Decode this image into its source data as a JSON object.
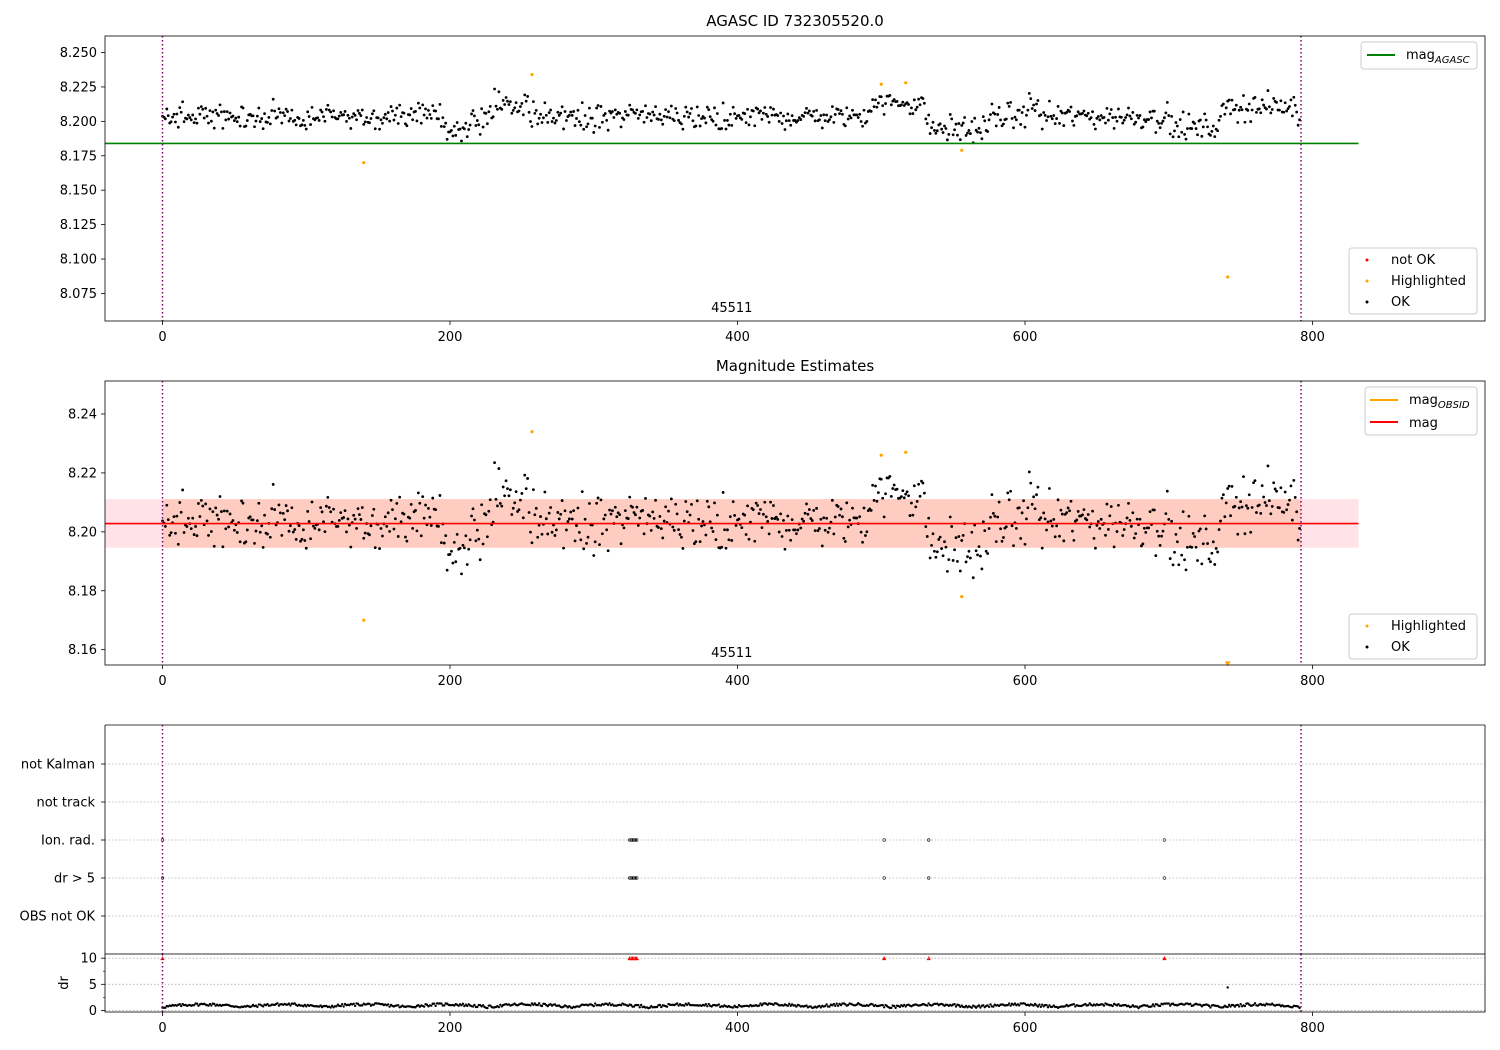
{
  "chart_data": [
    {
      "type": "scatter",
      "title": "AGASC ID 732305520.0",
      "xlim": [
        -40,
        920
      ],
      "ylim": [
        8.055,
        8.262
      ],
      "xticks": [
        "0",
        "200",
        "400",
        "600",
        "800"
      ],
      "yticks": [
        "8.075",
        "8.100",
        "8.125",
        "8.150",
        "8.175",
        "8.200",
        "8.225",
        "8.250"
      ],
      "obsid_label": "45511",
      "obsid_label_x": 396,
      "obs_boundaries": [
        0,
        792
      ],
      "reference_line": {
        "name": "mag",
        "subscript": "AGASC",
        "value": 8.184,
        "x_range": [
          -40,
          832
        ],
        "color": "#008000"
      },
      "ok_band": [
        8.183,
        8.226
      ],
      "n_ok_points": 780,
      "highlighted_points": [
        [
          140,
          8.17
        ],
        [
          257,
          8.234
        ],
        [
          500,
          8.227
        ],
        [
          517,
          8.228
        ],
        [
          556,
          8.179
        ],
        [
          741,
          8.087
        ]
      ],
      "not_ok_points": [],
      "legends": [
        {
          "position": "top-right",
          "entries": [
            {
              "label": "mag",
              "subscript": "AGASC",
              "kind": "line",
              "color": "#008000"
            }
          ]
        },
        {
          "position": "lower-right",
          "entries": [
            {
              "label": "not OK",
              "kind": "dot",
              "color": "#ff0000"
            },
            {
              "label": "Highlighted",
              "kind": "dot",
              "color": "#ffa500"
            },
            {
              "label": "OK",
              "kind": "dot",
              "color": "#000000"
            }
          ]
        }
      ]
    },
    {
      "type": "scatter",
      "title": "Magnitude Estimates",
      "xlim": [
        -40,
        920
      ],
      "ylim": [
        8.1548,
        8.2512
      ],
      "xticks": [
        "0",
        "200",
        "400",
        "600",
        "800"
      ],
      "yticks": [
        "8.16",
        "8.18",
        "8.20",
        "8.22",
        "8.24"
      ],
      "obsid_label": "45511",
      "obsid_label_x": 396,
      "obs_boundaries": [
        0,
        792
      ],
      "reference_line": {
        "name": "mag",
        "value": 8.2028,
        "x_range": [
          -40,
          832
        ],
        "color": "#ff0000"
      },
      "obsid_line": {
        "name": "mag",
        "subscript": "OBSID",
        "color": "#ffa500"
      },
      "error_band": [
        8.1946,
        8.2111
      ],
      "ok_band": [
        8.18,
        8.225
      ],
      "n_ok_points": 780,
      "highlighted_points": [
        [
          140,
          8.17
        ],
        [
          257,
          8.234
        ],
        [
          500,
          8.226
        ],
        [
          517,
          8.227
        ],
        [
          556,
          8.178
        ]
      ],
      "off_scale_markers": [
        [
          741,
          8.155
        ]
      ],
      "legends": [
        {
          "position": "top-right",
          "entries": [
            {
              "label": "mag",
              "subscript": "OBSID",
              "kind": "line",
              "color": "#ffa500"
            },
            {
              "label": "mag",
              "kind": "line",
              "color": "#ff0000"
            }
          ]
        },
        {
          "position": "lower-right",
          "entries": [
            {
              "label": "Highlighted",
              "kind": "dot",
              "color": "#ffa500"
            },
            {
              "label": "OK",
              "kind": "dot",
              "color": "#000000"
            }
          ]
        }
      ]
    },
    {
      "type": "scatter",
      "title": "",
      "xlim": [
        -40,
        920
      ],
      "xticks": [
        "0",
        "200",
        "400",
        "600",
        "800"
      ],
      "flag_labels": [
        "OBS not OK",
        "dr > 5",
        "Ion. rad.",
        "not Kalman",
        "not track"
      ],
      "flag_rows_top_to_bottom": [
        "not Kalman",
        "not track",
        "Ion. rad.",
        "dr > 5",
        "OBS not OK"
      ],
      "flag_points": {
        "Ion. rad.": [
          0,
          325,
          326,
          327,
          328,
          329,
          330,
          502,
          533,
          697
        ],
        "dr > 5": [
          0,
          325,
          326,
          327,
          328,
          329,
          330,
          502,
          533,
          697
        ]
      },
      "obs_boundaries": [
        0,
        792
      ]
    },
    {
      "type": "scatter",
      "ylabel": "dr",
      "xlim": [
        -40,
        920
      ],
      "ylim": [
        -0.3,
        10.8
      ],
      "xticks": [
        "0",
        "200",
        "400",
        "600",
        "800"
      ],
      "yticks": [
        "0",
        "5",
        "10"
      ],
      "n_points": 792,
      "outlier_points": [
        [
          741,
          4.4
        ]
      ],
      "clipped_markers_at_10": [
        0,
        325,
        326,
        327,
        328,
        329,
        330,
        502,
        533,
        697
      ],
      "obs_boundaries": [
        0,
        792
      ]
    }
  ]
}
